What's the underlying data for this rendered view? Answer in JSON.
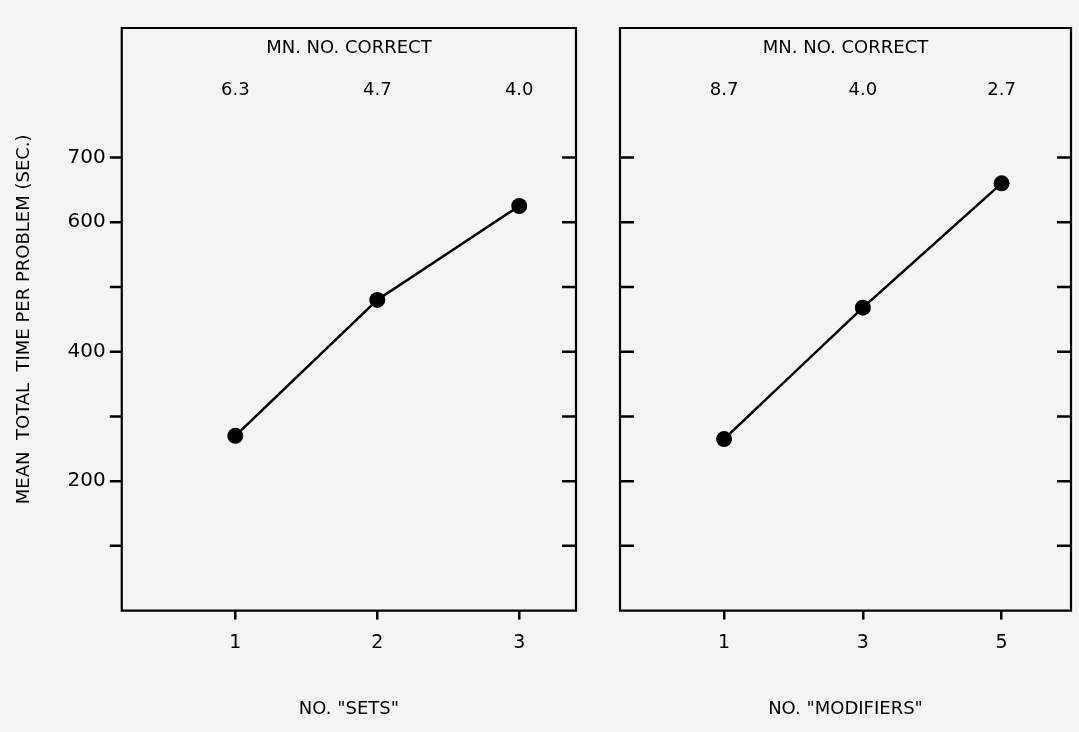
{
  "chart_data": [
    {
      "type": "line",
      "x": [
        1,
        2,
        3
      ],
      "values": [
        270,
        480,
        625
      ],
      "color": "#000000",
      "marker": "circle",
      "line_style": "solid",
      "grid": false,
      "xlim": [
        0.2,
        3.4
      ],
      "xticks": [
        1,
        2,
        3
      ],
      "ylim": [
        0,
        900
      ],
      "yticks": [
        {
          "value": 100,
          "label": null
        },
        200,
        {
          "value": 300,
          "label": null
        },
        400,
        {
          "value": 500,
          "label": null
        },
        600,
        700
      ],
      "xlabel": "NO. \"SETS\"",
      "ylabel": "MEAN  TOTAL  TIME PER PROBLEM (SEC.)",
      "annotations": [
        "MN. NO. CORRECT",
        "6.3",
        "4.7",
        "4.0"
      ]
    },
    {
      "type": "line",
      "x": [
        1,
        3,
        5
      ],
      "values": [
        265,
        468,
        660
      ],
      "color": "#000000",
      "marker": "circle",
      "line_style": "solid",
      "grid": false,
      "xlim": [
        -0.5,
        6
      ],
      "xticks": [
        1,
        3,
        5
      ],
      "ylim": [
        0,
        900
      ],
      "yticks": [
        {
          "value": 100,
          "label": null
        },
        {
          "value": 200,
          "label": null
        },
        {
          "value": 300,
          "label": null
        },
        {
          "value": 400,
          "label": null
        },
        {
          "value": 500,
          "label": null
        },
        {
          "value": 600,
          "label": null
        },
        {
          "value": 700,
          "label": null
        }
      ],
      "tick_labels": "x",
      "xlabel": "NO. \"MODIFIERS\"",
      "annotations": [
        "MN. NO. CORRECT",
        "8.7",
        "4.0",
        "2.7"
      ]
    }
  ]
}
